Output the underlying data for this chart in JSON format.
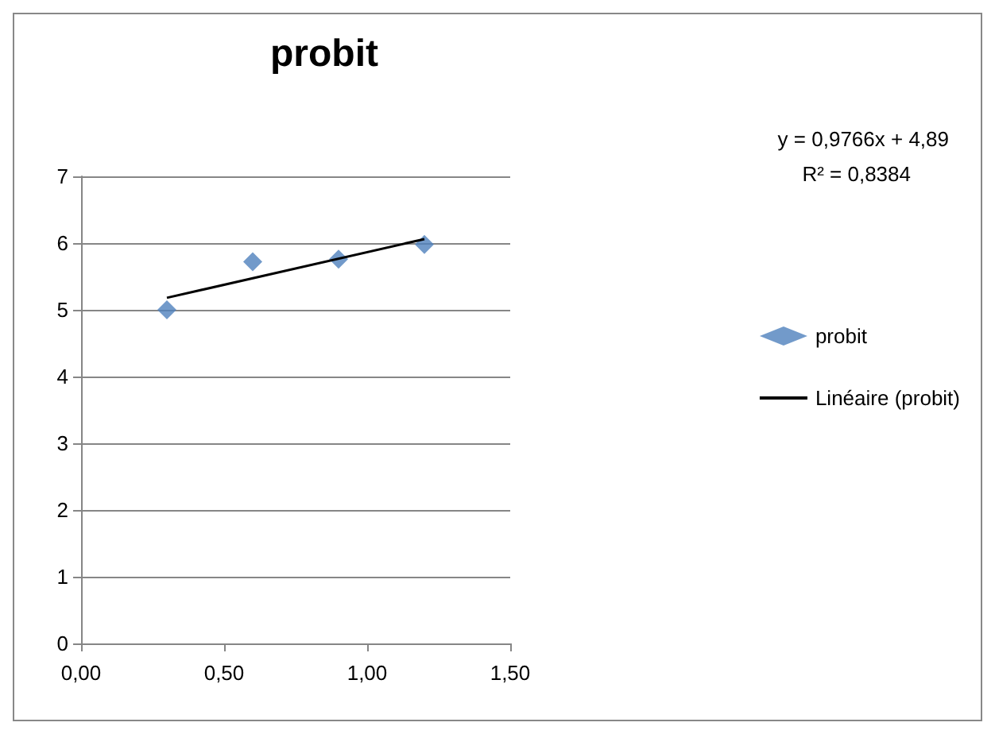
{
  "chart_data": {
    "type": "scatter",
    "title": "probit",
    "xlim": [
      0,
      1.5
    ],
    "xticks": [
      {
        "value": 0,
        "label": "0,00"
      },
      {
        "value": 0.5,
        "label": "0,50"
      },
      {
        "value": 1,
        "label": "1,00"
      },
      {
        "value": 1.5,
        "label": "1,50"
      }
    ],
    "ylim": [
      0,
      7
    ],
    "yticks": [
      0,
      1,
      2,
      3,
      4,
      5,
      6,
      7
    ],
    "grid": "y",
    "legend": "right",
    "series": [
      {
        "name": "probit",
        "color": "#4f81bd",
        "marker": "diamond",
        "x": [
          0.3,
          0.6,
          0.9,
          1.2
        ],
        "values": [
          5.0,
          5.72,
          5.76,
          5.98
        ]
      },
      {
        "name": "Linéaire (probit)",
        "type": "line",
        "marker": "none",
        "color": "#000000",
        "x": [
          0.3,
          1.2
        ],
        "values": [
          5.18,
          6.06
        ]
      }
    ],
    "annotations": [
      "y = 0,9766x + 4,89",
      "R² = 0,8384"
    ]
  }
}
